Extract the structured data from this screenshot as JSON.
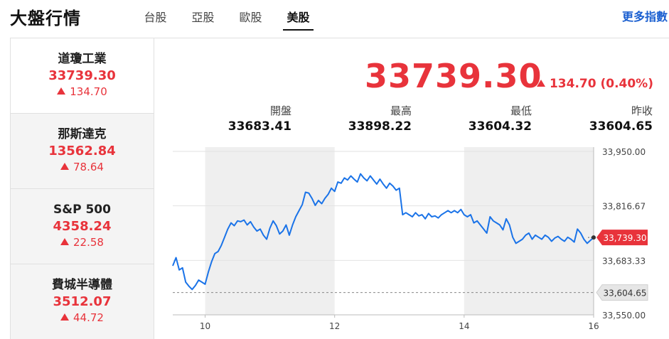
{
  "page": {
    "title": "大盤行情",
    "more_link": "更多指數"
  },
  "tabs": [
    {
      "label": "台股",
      "active": false
    },
    {
      "label": "亞股",
      "active": false
    },
    {
      "label": "歐股",
      "active": false
    },
    {
      "label": "美股",
      "active": true
    }
  ],
  "indices": [
    {
      "name": "道瓊工業",
      "value": "33739.30",
      "change": "134.70",
      "direction": "up"
    },
    {
      "name": "那斯達克",
      "value": "13562.84",
      "change": "78.64",
      "direction": "up"
    },
    {
      "name": "S&P 500",
      "value": "4358.24",
      "change": "22.58",
      "direction": "up"
    },
    {
      "name": "費城半導體",
      "value": "3512.07",
      "change": "44.72",
      "direction": "up"
    }
  ],
  "quote": {
    "price": "33739.30",
    "change": "134.70 (0.40%)",
    "stats": [
      {
        "label": "開盤",
        "value": "33683.41"
      },
      {
        "label": "最高",
        "value": "33898.22"
      },
      {
        "label": "最低",
        "value": "33604.32"
      },
      {
        "label": "昨收",
        "value": "33604.65"
      }
    ]
  },
  "colors": {
    "up": "#e8333b",
    "line": "#1a73e8",
    "accent_link": "#1a5fd0"
  },
  "chart_data": {
    "type": "line",
    "x_ticks": [
      "10",
      "12",
      "14",
      "16"
    ],
    "y_ticks": [
      "33,950.00",
      "33,816.67",
      "33,683.33",
      "33,550.00"
    ],
    "ylim": [
      33550,
      33950
    ],
    "xlim": [
      9.5,
      16
    ],
    "current_label": "33,739.30",
    "prev_close_label": "33,604.65",
    "current_value": 33739.3,
    "prev_close_value": 33604.65,
    "shaded_hours": [
      [
        10,
        12
      ],
      [
        14,
        16
      ]
    ],
    "series": [
      {
        "values": [
          [
            9.5,
            33670
          ],
          [
            9.55,
            33690
          ],
          [
            9.6,
            33660
          ],
          [
            9.65,
            33665
          ],
          [
            9.7,
            33630
          ],
          [
            9.75,
            33620
          ],
          [
            9.8,
            33612
          ],
          [
            9.85,
            33622
          ],
          [
            9.9,
            33635
          ],
          [
            9.95,
            33630
          ],
          [
            10.0,
            33625
          ],
          [
            10.05,
            33655
          ],
          [
            10.1,
            33680
          ],
          [
            10.15,
            33700
          ],
          [
            10.2,
            33705
          ],
          [
            10.25,
            33720
          ],
          [
            10.3,
            33740
          ],
          [
            10.35,
            33760
          ],
          [
            10.4,
            33775
          ],
          [
            10.45,
            33768
          ],
          [
            10.5,
            33780
          ],
          [
            10.55,
            33778
          ],
          [
            10.6,
            33782
          ],
          [
            10.65,
            33770
          ],
          [
            10.7,
            33778
          ],
          [
            10.75,
            33765
          ],
          [
            10.8,
            33755
          ],
          [
            10.85,
            33760
          ],
          [
            10.9,
            33745
          ],
          [
            10.95,
            33735
          ],
          [
            11.0,
            33762
          ],
          [
            11.05,
            33780
          ],
          [
            11.1,
            33768
          ],
          [
            11.15,
            33748
          ],
          [
            11.2,
            33755
          ],
          [
            11.25,
            33770
          ],
          [
            11.3,
            33745
          ],
          [
            11.35,
            33770
          ],
          [
            11.4,
            33790
          ],
          [
            11.45,
            33805
          ],
          [
            11.5,
            33820
          ],
          [
            11.55,
            33850
          ],
          [
            11.6,
            33848
          ],
          [
            11.65,
            33835
          ],
          [
            11.7,
            33818
          ],
          [
            11.75,
            33830
          ],
          [
            11.8,
            33822
          ],
          [
            11.85,
            33835
          ],
          [
            11.9,
            33845
          ],
          [
            11.95,
            33860
          ],
          [
            12.0,
            33852
          ],
          [
            12.05,
            33875
          ],
          [
            12.1,
            33872
          ],
          [
            12.15,
            33885
          ],
          [
            12.2,
            33880
          ],
          [
            12.25,
            33890
          ],
          [
            12.3,
            33882
          ],
          [
            12.35,
            33875
          ],
          [
            12.4,
            33895
          ],
          [
            12.45,
            33885
          ],
          [
            12.5,
            33878
          ],
          [
            12.55,
            33890
          ],
          [
            12.6,
            33880
          ],
          [
            12.65,
            33870
          ],
          [
            12.7,
            33882
          ],
          [
            12.75,
            33870
          ],
          [
            12.8,
            33860
          ],
          [
            12.85,
            33872
          ],
          [
            12.9,
            33865
          ],
          [
            12.95,
            33855
          ],
          [
            13.0,
            33860
          ],
          [
            13.05,
            33795
          ],
          [
            13.1,
            33800
          ],
          [
            13.15,
            33795
          ],
          [
            13.2,
            33790
          ],
          [
            13.25,
            33800
          ],
          [
            13.3,
            33792
          ],
          [
            13.35,
            33795
          ],
          [
            13.4,
            33785
          ],
          [
            13.45,
            33798
          ],
          [
            13.5,
            33790
          ],
          [
            13.55,
            33792
          ],
          [
            13.6,
            33787
          ],
          [
            13.65,
            33795
          ],
          [
            13.7,
            33800
          ],
          [
            13.75,
            33805
          ],
          [
            13.8,
            33800
          ],
          [
            13.85,
            33805
          ],
          [
            13.9,
            33800
          ],
          [
            13.95,
            33808
          ],
          [
            14.0,
            33795
          ],
          [
            14.05,
            33790
          ],
          [
            14.1,
            33795
          ],
          [
            14.15,
            33775
          ],
          [
            14.2,
            33780
          ],
          [
            14.25,
            33770
          ],
          [
            14.3,
            33760
          ],
          [
            14.35,
            33750
          ],
          [
            14.4,
            33790
          ],
          [
            14.45,
            33780
          ],
          [
            14.5,
            33775
          ],
          [
            14.55,
            33770
          ],
          [
            14.6,
            33758
          ],
          [
            14.65,
            33785
          ],
          [
            14.7,
            33770
          ],
          [
            14.75,
            33740
          ],
          [
            14.8,
            33725
          ],
          [
            14.85,
            33730
          ],
          [
            14.9,
            33735
          ],
          [
            14.95,
            33745
          ],
          [
            15.0,
            33750
          ],
          [
            15.05,
            33735
          ],
          [
            15.1,
            33745
          ],
          [
            15.15,
            33740
          ],
          [
            15.2,
            33735
          ],
          [
            15.25,
            33745
          ],
          [
            15.3,
            33740
          ],
          [
            15.35,
            33730
          ],
          [
            15.4,
            33738
          ],
          [
            15.45,
            33742
          ],
          [
            15.5,
            33735
          ],
          [
            15.55,
            33730
          ],
          [
            15.6,
            33740
          ],
          [
            15.65,
            33735
          ],
          [
            15.7,
            33728
          ],
          [
            15.75,
            33760
          ],
          [
            15.8,
            33750
          ],
          [
            15.85,
            33735
          ],
          [
            15.9,
            33725
          ],
          [
            15.95,
            33732
          ],
          [
            16.0,
            33739.3
          ]
        ]
      }
    ]
  }
}
